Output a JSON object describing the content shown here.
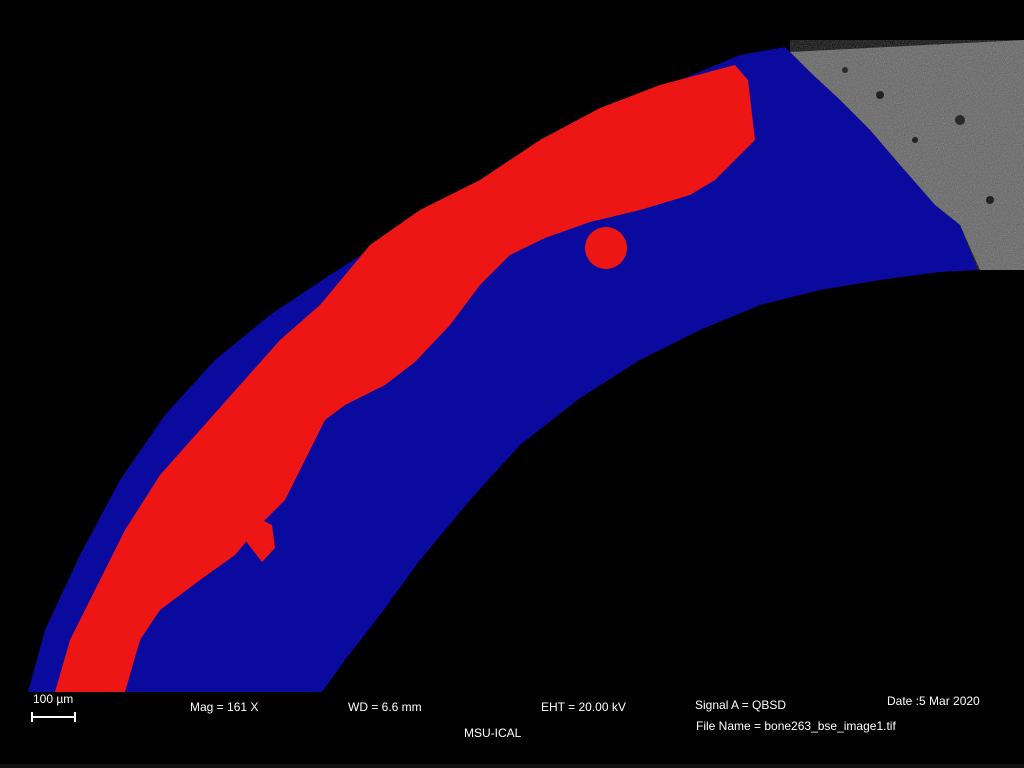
{
  "image": {
    "colors": {
      "background": "#000000",
      "cortical_bone": "#0a0a9e",
      "segmented_region": "#ee1515",
      "raw_sem_texture": "#6e6e6e"
    }
  },
  "info_bar": {
    "scale_label": "100 µm",
    "mag": "Mag =    161 X",
    "wd": "WD =  6.6 mm",
    "eht": "EHT = 20.00 kV",
    "signal": "Signal A = QBSD",
    "date": "Date :5 Mar 2020",
    "lab": "MSU-ICAL",
    "file_name": "File Name = bone263_bse_image1.tif"
  }
}
